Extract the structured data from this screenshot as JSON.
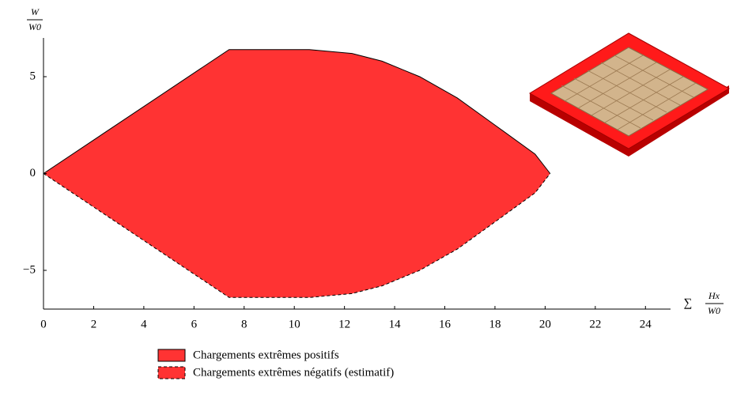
{
  "chart_data": {
    "type": "area",
    "y_label_num": "W",
    "y_label_den": "W0",
    "x_label_sym": "∑",
    "x_label_num": "Hx",
    "x_label_den": "W0",
    "xlim": [
      0,
      25
    ],
    "ylim": [
      -7,
      7
    ],
    "xticks": [
      0,
      2,
      4,
      6,
      8,
      10,
      12,
      14,
      16,
      18,
      20,
      22,
      24
    ],
    "yticks": [
      {
        "value": -5,
        "label": "−5"
      },
      0,
      5
    ],
    "series": [
      {
        "name": "Chargements extrêmes positifs",
        "color": "#ff3333",
        "line_style": "solid",
        "x": [
          0,
          7.4,
          10.6,
          12.3,
          13.5,
          15,
          16.5,
          18,
          19.6,
          20.2
        ],
        "values": [
          0,
          6.4,
          6.4,
          6.2,
          5.8,
          5.0,
          3.9,
          2.5,
          1.0,
          0
        ]
      },
      {
        "name": "Chargements extrêmes négatifs (estimatif)",
        "color": "#ff3333",
        "line_style": "dashed",
        "x": [
          0,
          7.4,
          10.6,
          12.3,
          13.5,
          15,
          16.5,
          18,
          19.6,
          20.2
        ],
        "values": [
          0,
          -6.4,
          -6.4,
          -6.2,
          -5.8,
          -5.0,
          -3.9,
          -2.5,
          -1.0,
          0
        ]
      }
    ]
  }
}
